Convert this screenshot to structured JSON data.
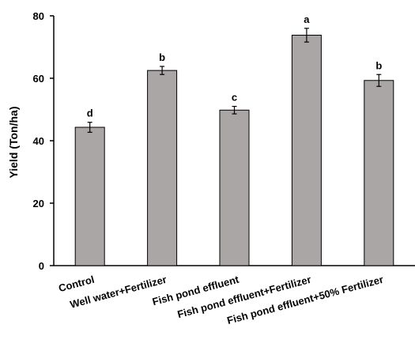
{
  "chart_data": {
    "type": "bar",
    "ylabel": "Yield (Ton/ha)",
    "ylim": [
      0,
      80
    ],
    "yticks": [
      0,
      20,
      40,
      60,
      80
    ],
    "grid": false,
    "bar_color": "#aaa6a6",
    "bar_edge_color": "#000000",
    "categories": [
      "Control",
      "Well water+Fertilizer",
      "Fish pond effluent",
      "Fish pond effluent+Fertilizer",
      "Fish pond effluent+50% Fertilizer"
    ],
    "values": [
      44.3,
      62.5,
      49.8,
      73.8,
      59.3
    ],
    "errors": [
      1.6,
      1.3,
      1.2,
      2.2,
      1.9
    ],
    "significance": [
      "d",
      "b",
      "c",
      "a",
      "b"
    ]
  }
}
